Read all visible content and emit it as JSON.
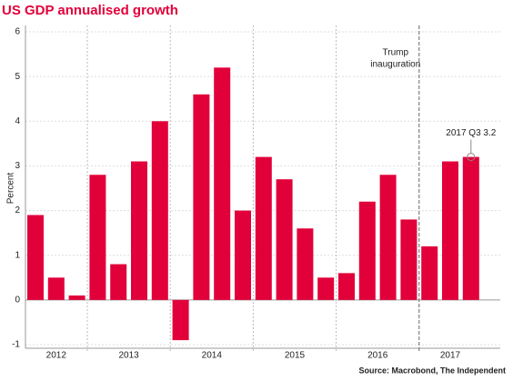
{
  "chart_data": {
    "type": "bar",
    "title": "US GDP annualised growth",
    "ylabel": "Percent",
    "source": "Source: Macrobond, The Independent",
    "categories": [
      null,
      null,
      null,
      null,
      null,
      null,
      null,
      null,
      null,
      null,
      null,
      null,
      null,
      null,
      null,
      null,
      null,
      null,
      null,
      null,
      null,
      null
    ],
    "values": [
      1.9,
      0.5,
      0.1,
      2.8,
      0.8,
      3.1,
      4.0,
      -0.9,
      4.6,
      5.2,
      2.0,
      3.2,
      2.7,
      1.6,
      0.5,
      0.6,
      2.2,
      2.8,
      1.8,
      1.2,
      3.1,
      3.2
    ],
    "groups": [
      {
        "name": "2012",
        "size": 3
      },
      {
        "name": "2013",
        "size": 4
      },
      {
        "name": "2014",
        "size": 4
      },
      {
        "name": "2015",
        "size": 4
      },
      {
        "name": "2016",
        "size": 4
      },
      {
        "name": "2017",
        "size": 3
      }
    ],
    "color": "#e2003a",
    "ylim": [
      -1,
      6
    ],
    "yticks": [
      -1,
      0,
      1,
      2,
      3,
      4,
      5,
      6
    ],
    "grid": true,
    "annotations": [
      {
        "text": [
          "Trump",
          "inauguration"
        ]
      },
      {
        "text": "2017 Q3 3.2"
      }
    ]
  }
}
